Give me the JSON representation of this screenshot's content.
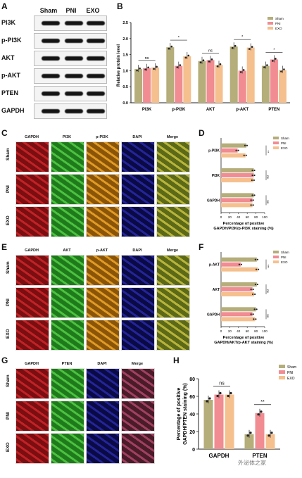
{
  "panel_letters": [
    "A",
    "B",
    "C",
    "D",
    "E",
    "F",
    "G",
    "H"
  ],
  "panelA": {
    "columns": [
      "Sham",
      "PNI",
      "EXO"
    ],
    "rows": [
      "PI3K",
      "p-PI3K",
      "AKT",
      "p-AKT",
      "PTEN",
      "GAPDH"
    ]
  },
  "panelB": {
    "ylabel": "Relative protein level",
    "yticks": [
      "0.0",
      "0.5",
      "1.0",
      "1.5",
      "2.0",
      "2.5"
    ],
    "categories": [
      "PI3K",
      "p-PI3K",
      "AKT",
      "p-AKT",
      "PTEN"
    ],
    "legend": [
      "Sham",
      "PNI",
      "EXO"
    ],
    "sig": [
      "ns",
      "*",
      "ns",
      "*",
      "*"
    ]
  },
  "panelC": {
    "cols": [
      "GAPDH",
      "PI3K",
      "p-PI3K",
      "DAPI",
      "Merge"
    ],
    "rows": [
      "Sham",
      "PNI",
      "EXO"
    ]
  },
  "panelE": {
    "cols": [
      "GAPDH",
      "AKT",
      "p-AKT",
      "DAPI",
      "Merge"
    ],
    "rows": [
      "Sham",
      "PNI",
      "EXO"
    ]
  },
  "panelG": {
    "cols": [
      "GAPDH",
      "PTEN",
      "DAPI",
      "Merge"
    ],
    "rows": [
      "Sham",
      "PNI",
      "EXO"
    ]
  },
  "panelD": {
    "categories": [
      "p-PI3K",
      "PI3K",
      "GAPDH"
    ],
    "xticks": [
      "0",
      "20",
      "40",
      "60",
      "80",
      "100"
    ],
    "xlabel_1": "Percentage of positive",
    "xlabel_2": "GAPDH/PI3K/p-PI3K staining (%)",
    "legend": [
      "Sham",
      "PNI",
      "EXO"
    ],
    "sig": [
      "**",
      "ns",
      "ns"
    ]
  },
  "panelF": {
    "categories": [
      "p-AKT",
      "AKT",
      "GAPDH"
    ],
    "xticks": [
      "0",
      "20",
      "40",
      "60",
      "80",
      "100"
    ],
    "xlabel_1": "Percentage of positive",
    "xlabel_2": "GAPDH/AKT/p-AKT staining (%)",
    "legend": [
      "Sham",
      "PNI",
      "EXO"
    ],
    "sig": [
      "***",
      "ns",
      "ns"
    ]
  },
  "panelH": {
    "ylabel_1": "Percentage of positive",
    "ylabel_2": "GAPDH/PTEN staining (%)",
    "yticks": [
      "0",
      "20",
      "40",
      "60",
      "80"
    ],
    "categories": [
      "GAPDH",
      "PTEN"
    ],
    "legend": [
      "Sham",
      "PNI",
      "EXO"
    ],
    "sig": [
      "ns",
      "**"
    ]
  },
  "watermark": "外泌体之家",
  "colors": {
    "sham": "#b5ad7a",
    "pni": "#f08c92",
    "exo": "#f5c08e",
    "red": "#a0161a",
    "green": "#2f9b2a",
    "orange": "#c47a12",
    "blue": "#15157a"
  },
  "chart_data": [
    {
      "type": "bar",
      "ylabel": "Relative protein level",
      "ylim": [
        0,
        2.5
      ],
      "categories": [
        "PI3K",
        "p-PI3K",
        "AKT",
        "p-AKT",
        "PTEN"
      ],
      "series": [
        {
          "name": "Sham",
          "values": [
            1.05,
            1.73,
            1.3,
            1.75,
            1.15
          ]
        },
        {
          "name": "PNI",
          "values": [
            1.08,
            1.15,
            1.33,
            1.0,
            1.35
          ]
        },
        {
          "name": "EXO",
          "values": [
            1.1,
            1.45,
            1.18,
            1.72,
            1.02
          ]
        }
      ]
    },
    {
      "type": "bar",
      "orientation": "horizontal",
      "xlabel": "Percentage of positive GAPDH/PI3K/p-PI3K staining (%)",
      "xlim": [
        0,
        100
      ],
      "categories": [
        "p-PI3K",
        "PI3K",
        "GAPDH"
      ],
      "series": [
        {
          "name": "Sham",
          "values": [
            58,
            75,
            75
          ]
        },
        {
          "name": "PNI",
          "values": [
            38,
            75,
            72
          ]
        },
        {
          "name": "EXO",
          "values": [
            56,
            74,
            72
          ]
        }
      ]
    },
    {
      "type": "bar",
      "orientation": "horizontal",
      "xlabel": "Percentage of positive GAPDH/AKT/p-AKT staining (%)",
      "xlim": [
        0,
        100
      ],
      "categories": [
        "p-AKT",
        "AKT",
        "GAPDH"
      ],
      "series": [
        {
          "name": "Sham",
          "values": [
            82,
            82,
            80
          ]
        },
        {
          "name": "PNI",
          "values": [
            45,
            72,
            72
          ]
        },
        {
          "name": "EXO",
          "values": [
            84,
            76,
            78
          ]
        }
      ]
    },
    {
      "type": "bar",
      "ylabel": "Percentage of positive GAPDH/PTEN staining (%)",
      "ylim": [
        0,
        80
      ],
      "categories": [
        "GAPDH",
        "PTEN"
      ],
      "series": [
        {
          "name": "Sham",
          "values": [
            56,
            17
          ]
        },
        {
          "name": "PNI",
          "values": [
            62,
            41
          ]
        },
        {
          "name": "EXO",
          "values": [
            62,
            17
          ]
        }
      ]
    }
  ]
}
